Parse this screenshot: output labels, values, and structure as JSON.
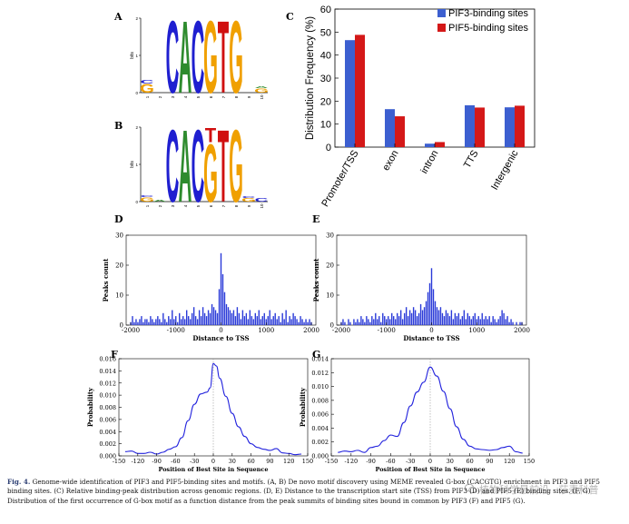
{
  "panel_letters": {
    "A": "A",
    "B": "B",
    "C": "C",
    "D": "D",
    "E": "E",
    "F": "F",
    "G": "G"
  },
  "logos": [
    {
      "ylabel": "bits",
      "yticks": [
        "0",
        "1",
        "2"
      ],
      "positions": [
        "1",
        "2",
        "3",
        "4",
        "5",
        "6",
        "7",
        "8",
        "9",
        "10"
      ],
      "letters": [
        {
          "pos": 1,
          "stack": [
            {
              "ch": "G",
              "h": 0.25
            },
            {
              "ch": "C",
              "h": 0.1
            }
          ]
        },
        {
          "pos": 2,
          "stack": []
        },
        {
          "pos": 3,
          "stack": [
            {
              "ch": "C",
              "h": 2.0
            }
          ]
        },
        {
          "pos": 4,
          "stack": [
            {
              "ch": "A",
              "h": 2.0
            }
          ]
        },
        {
          "pos": 5,
          "stack": [
            {
              "ch": "C",
              "h": 2.0
            }
          ]
        },
        {
          "pos": 6,
          "stack": [
            {
              "ch": "G",
              "h": 2.0
            }
          ]
        },
        {
          "pos": 7,
          "stack": [
            {
              "ch": "T",
              "h": 2.0
            }
          ]
        },
        {
          "pos": 8,
          "stack": [
            {
              "ch": "G",
              "h": 2.0
            }
          ]
        },
        {
          "pos": 9,
          "stack": []
        },
        {
          "pos": 10,
          "stack": [
            {
              "ch": "G",
              "h": 0.12
            },
            {
              "ch": "A",
              "h": 0.05
            }
          ]
        }
      ]
    },
    {
      "ylabel": "bits",
      "yticks": [
        "0",
        "1",
        "2"
      ],
      "positions": [
        "1",
        "2",
        "3",
        "4",
        "5",
        "6",
        "7",
        "8",
        "9",
        "10"
      ],
      "letters": [
        {
          "pos": 1,
          "stack": [
            {
              "ch": "G",
              "h": 0.12
            },
            {
              "ch": "C",
              "h": 0.05
            }
          ]
        },
        {
          "pos": 2,
          "stack": [
            {
              "ch": "A",
              "h": 0.05
            }
          ]
        },
        {
          "pos": 3,
          "stack": [
            {
              "ch": "C",
              "h": 2.0
            }
          ]
        },
        {
          "pos": 4,
          "stack": [
            {
              "ch": "A",
              "h": 2.0
            }
          ]
        },
        {
          "pos": 5,
          "stack": [
            {
              "ch": "C",
              "h": 2.0
            }
          ]
        },
        {
          "pos": 6,
          "stack": [
            {
              "ch": "G",
              "h": 1.6
            },
            {
              "ch": "T",
              "h": 0.4
            }
          ]
        },
        {
          "pos": 7,
          "stack": [
            {
              "ch": "T",
              "h": 2.0
            }
          ]
        },
        {
          "pos": 8,
          "stack": [
            {
              "ch": "G",
              "h": 2.0
            }
          ]
        },
        {
          "pos": 9,
          "stack": [
            {
              "ch": "G",
              "h": 0.1
            },
            {
              "ch": "C",
              "h": 0.05
            }
          ]
        },
        {
          "pos": 10,
          "stack": [
            {
              "ch": "C",
              "h": 0.1
            }
          ]
        }
      ]
    }
  ],
  "logo_colors": {
    "A": "#2e8b2e",
    "C": "#1f1fd0",
    "G": "#f0a000",
    "T": "#d01010"
  },
  "chart_data": [
    {
      "panel": "C",
      "type": "bar",
      "categories": [
        "Promoter/TSS",
        "exon",
        "intron",
        "TTS",
        "Intergenic"
      ],
      "series": [
        {
          "name": "PIF3-binding sites",
          "color": "#3c5fd0",
          "values": [
            46.5,
            16.5,
            1.5,
            18.2,
            17.3
          ]
        },
        {
          "name": "PIF5-binding sites",
          "color": "#d41818",
          "values": [
            48.8,
            13.4,
            2.2,
            17.2,
            18.0
          ]
        }
      ],
      "ylabel": "Distribution Frequency (%)",
      "ylim": [
        0,
        60
      ],
      "yticks": [
        0,
        10,
        20,
        30,
        40,
        50,
        60
      ],
      "legend": "top-right"
    },
    {
      "panel": "D",
      "type": "bar",
      "xlabel": "Distance to TSS",
      "ylabel": "Peaks count",
      "xlim": [
        -2100,
        2100
      ],
      "xticks": [
        -2000,
        -1000,
        0,
        1000,
        2000
      ],
      "ylim": [
        0,
        30
      ],
      "yticks": [
        0,
        10,
        20,
        30
      ],
      "bin_width": 40,
      "x": [
        -2000,
        -1960,
        -1920,
        -1880,
        -1840,
        -1800,
        -1760,
        -1720,
        -1680,
        -1640,
        -1600,
        -1560,
        -1520,
        -1480,
        -1440,
        -1400,
        -1360,
        -1320,
        -1280,
        -1240,
        -1200,
        -1160,
        -1120,
        -1080,
        -1040,
        -1000,
        -960,
        -920,
        -880,
        -840,
        -800,
        -760,
        -720,
        -680,
        -640,
        -600,
        -560,
        -520,
        -480,
        -440,
        -400,
        -360,
        -320,
        -280,
        -240,
        -200,
        -160,
        -120,
        -80,
        -40,
        0,
        40,
        80,
        120,
        160,
        200,
        240,
        280,
        320,
        360,
        400,
        440,
        480,
        520,
        560,
        600,
        640,
        680,
        720,
        760,
        800,
        840,
        880,
        920,
        960,
        1000,
        1040,
        1080,
        1120,
        1160,
        1200,
        1240,
        1280,
        1320,
        1360,
        1400,
        1440,
        1480,
        1520,
        1560,
        1600,
        1640,
        1680,
        1720,
        1760,
        1800,
        1840,
        1880,
        1920,
        1960,
        2000
      ],
      "values": [
        1,
        3,
        1,
        2,
        1,
        2,
        3,
        1,
        2,
        2,
        1,
        3,
        2,
        1,
        2,
        3,
        2,
        1,
        4,
        2,
        1,
        3,
        2,
        5,
        2,
        3,
        1,
        4,
        2,
        3,
        2,
        5,
        3,
        2,
        4,
        6,
        3,
        2,
        5,
        3,
        6,
        4,
        3,
        5,
        4,
        7,
        6,
        5,
        4,
        12,
        24,
        17,
        11,
        7,
        6,
        5,
        4,
        5,
        3,
        6,
        4,
        2,
        5,
        3,
        4,
        2,
        5,
        3,
        2,
        4,
        3,
        5,
        2,
        3,
        4,
        2,
        3,
        5,
        2,
        3,
        4,
        2,
        3,
        1,
        4,
        2,
        5,
        1,
        3,
        2,
        4,
        3,
        2,
        1,
        3,
        2,
        1,
        2,
        1,
        2,
        1
      ]
    },
    {
      "panel": "E",
      "type": "bar",
      "xlabel": "Distance to TSS",
      "ylabel": "Peaks count",
      "xlim": [
        -2100,
        2100
      ],
      "xticks": [
        -2000,
        -1000,
        0,
        1000,
        2000
      ],
      "ylim": [
        0,
        30
      ],
      "yticks": [
        0,
        10,
        20,
        30
      ],
      "bin_width": 40,
      "x": [
        -2000,
        -1960,
        -1920,
        -1880,
        -1840,
        -1800,
        -1760,
        -1720,
        -1680,
        -1640,
        -1600,
        -1560,
        -1520,
        -1480,
        -1440,
        -1400,
        -1360,
        -1320,
        -1280,
        -1240,
        -1200,
        -1160,
        -1120,
        -1080,
        -1040,
        -1000,
        -960,
        -920,
        -880,
        -840,
        -800,
        -760,
        -720,
        -680,
        -640,
        -600,
        -560,
        -520,
        -480,
        -440,
        -400,
        -360,
        -320,
        -280,
        -240,
        -200,
        -160,
        -120,
        -80,
        -40,
        0,
        40,
        80,
        120,
        160,
        200,
        240,
        280,
        320,
        360,
        400,
        440,
        480,
        520,
        560,
        600,
        640,
        680,
        720,
        760,
        800,
        840,
        880,
        920,
        960,
        1000,
        1040,
        1080,
        1120,
        1160,
        1200,
        1240,
        1280,
        1320,
        1360,
        1400,
        1440,
        1480,
        1520,
        1560,
        1600,
        1640,
        1680,
        1720,
        1760,
        1800,
        1840,
        1880,
        1920,
        1960,
        2000
      ],
      "values": [
        1,
        2,
        1,
        0,
        2,
        1,
        0,
        2,
        1,
        2,
        1,
        3,
        2,
        1,
        3,
        2,
        1,
        3,
        2,
        4,
        2,
        3,
        1,
        4,
        3,
        2,
        3,
        2,
        4,
        3,
        2,
        4,
        3,
        5,
        2,
        4,
        6,
        3,
        5,
        4,
        6,
        5,
        3,
        4,
        7,
        5,
        6,
        8,
        11,
        14,
        19,
        12,
        8,
        6,
        5,
        6,
        4,
        3,
        5,
        4,
        3,
        5,
        2,
        4,
        3,
        4,
        2,
        3,
        5,
        2,
        4,
        3,
        2,
        3,
        4,
        2,
        3,
        2,
        4,
        2,
        3,
        2,
        3,
        1,
        3,
        2,
        1,
        2,
        3,
        5,
        4,
        2,
        3,
        1,
        2,
        1,
        0,
        1,
        0,
        1,
        1
      ]
    },
    {
      "panel": "F",
      "type": "line",
      "xlabel": "Position of Best Site in Sequence",
      "ylabel": "Probability",
      "xlim": [
        -150,
        150
      ],
      "xticks": [
        -150,
        -120,
        -90,
        -60,
        -30,
        0,
        30,
        60,
        90,
        120,
        150
      ],
      "ylim": [
        0,
        0.016
      ],
      "yticks": [
        0,
        0.002,
        0.004,
        0.006,
        0.008,
        0.01,
        0.012,
        0.014,
        0.016
      ],
      "x": [
        -140,
        -130,
        -120,
        -110,
        -100,
        -90,
        -80,
        -70,
        -60,
        -50,
        -40,
        -30,
        -20,
        -10,
        -5,
        0,
        5,
        10,
        20,
        30,
        40,
        50,
        60,
        70,
        80,
        90,
        100,
        110,
        120,
        130,
        140
      ],
      "y": [
        0.0007,
        0.0008,
        0.0004,
        0.0004,
        0.0006,
        0.0003,
        0.0006,
        0.0011,
        0.0015,
        0.003,
        0.0058,
        0.0085,
        0.0102,
        0.0105,
        0.0112,
        0.0152,
        0.0148,
        0.0128,
        0.0098,
        0.007,
        0.0048,
        0.0032,
        0.002,
        0.0014,
        0.0011,
        0.0009,
        0.0012,
        0.0005,
        0.0004,
        0.0002,
        0.0003
      ]
    },
    {
      "panel": "G",
      "type": "line",
      "xlabel": "Position of Best Site in Sequence",
      "ylabel": "Probability",
      "xlim": [
        -150,
        150
      ],
      "xticks": [
        -150,
        -120,
        -90,
        -60,
        -30,
        0,
        30,
        60,
        90,
        120,
        150
      ],
      "ylim": [
        0,
        0.014
      ],
      "yticks": [
        0,
        0.002,
        0.004,
        0.006,
        0.008,
        0.01,
        0.012,
        0.014
      ],
      "x": [
        -140,
        -130,
        -120,
        -110,
        -100,
        -90,
        -80,
        -70,
        -60,
        -50,
        -40,
        -30,
        -20,
        -10,
        0,
        10,
        20,
        30,
        40,
        50,
        60,
        70,
        80,
        90,
        100,
        110,
        120,
        130,
        140
      ],
      "y": [
        0.0005,
        0.0007,
        0.0006,
        0.0008,
        0.0005,
        0.0012,
        0.0014,
        0.0022,
        0.003,
        0.0028,
        0.0048,
        0.0072,
        0.0092,
        0.0106,
        0.0128,
        0.0115,
        0.0093,
        0.0068,
        0.0042,
        0.0024,
        0.0014,
        0.001,
        0.0009,
        0.0008,
        0.0009,
        0.0012,
        0.0014,
        0.0006,
        0.0004
      ]
    }
  ],
  "caption": {
    "label": "Fig. 4.",
    "text": " Genome-wide identification of PIF3 and PIF5-binding sites and motifs. (A, B) De novo motif discovery using MEME revealed G-box (CACGTG) enrichment in PIF3 and PIF5 binding sites. (C) Relative binding-peak distribution across genomic regions. (D, E) Distance to the transcription start site (TSS) from PIF3 (D) and PIF5 (E) binding sites. (F, G) Distribution of the first occurrence of G-box motif as a function distance from the peak summits of binding sites bound in common by PIF3 (F) and PIF5 (G)."
  },
  "watermark": "植物科学最前沿 · 莎麦科普"
}
